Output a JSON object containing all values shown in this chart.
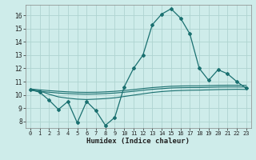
{
  "title": "",
  "xlabel": "Humidex (Indice chaleur)",
  "bg_color": "#ceecea",
  "grid_color": "#aed4d0",
  "line_color": "#1a7070",
  "xlim": [
    -0.5,
    23.5
  ],
  "ylim": [
    7.5,
    16.8
  ],
  "xticks": [
    0,
    1,
    2,
    3,
    4,
    5,
    6,
    7,
    8,
    9,
    10,
    11,
    12,
    13,
    14,
    15,
    16,
    17,
    18,
    19,
    20,
    21,
    22,
    23
  ],
  "yticks": [
    8,
    9,
    10,
    11,
    12,
    13,
    14,
    15,
    16
  ],
  "main_x": [
    0,
    1,
    2,
    3,
    4,
    5,
    6,
    7,
    8,
    9,
    10,
    11,
    12,
    13,
    14,
    15,
    16,
    17,
    18,
    19,
    20,
    21,
    22,
    23
  ],
  "main_y": [
    10.4,
    10.2,
    9.6,
    8.9,
    9.5,
    7.9,
    9.5,
    8.8,
    7.7,
    8.3,
    10.6,
    12.0,
    13.0,
    15.3,
    16.1,
    16.5,
    15.8,
    14.6,
    12.0,
    11.1,
    11.9,
    11.6,
    11.0,
    10.5
  ],
  "line2_x": [
    0,
    1,
    2,
    3,
    4,
    5,
    6,
    7,
    8,
    9,
    10,
    11,
    12,
    13,
    14,
    15,
    16,
    17,
    18,
    19,
    20,
    21,
    22,
    23
  ],
  "line2_y": [
    10.45,
    10.38,
    10.32,
    10.27,
    10.23,
    10.2,
    10.19,
    10.2,
    10.23,
    10.27,
    10.33,
    10.4,
    10.48,
    10.55,
    10.6,
    10.65,
    10.67,
    10.68,
    10.68,
    10.7,
    10.72,
    10.73,
    10.73,
    10.72
  ],
  "line3_x": [
    0,
    1,
    2,
    3,
    4,
    5,
    6,
    7,
    8,
    9,
    10,
    11,
    12,
    13,
    14,
    15,
    16,
    17,
    18,
    19,
    20,
    21,
    22,
    23
  ],
  "line3_y": [
    10.35,
    10.27,
    10.2,
    10.14,
    10.1,
    10.07,
    10.06,
    10.07,
    10.1,
    10.14,
    10.2,
    10.27,
    10.35,
    10.42,
    10.47,
    10.52,
    10.54,
    10.55,
    10.55,
    10.57,
    10.59,
    10.6,
    10.6,
    10.59
  ],
  "line4_x": [
    0,
    1,
    2,
    3,
    4,
    5,
    6,
    7,
    8,
    9,
    10,
    11,
    12,
    13,
    14,
    15,
    16,
    17,
    18,
    19,
    20,
    21,
    22,
    23
  ],
  "line4_y": [
    10.4,
    10.3,
    10.05,
    9.85,
    9.75,
    9.68,
    9.65,
    9.68,
    9.72,
    9.78,
    9.88,
    9.98,
    10.08,
    10.18,
    10.25,
    10.3,
    10.33,
    10.35,
    10.36,
    10.38,
    10.4,
    10.41,
    10.42,
    10.41
  ]
}
